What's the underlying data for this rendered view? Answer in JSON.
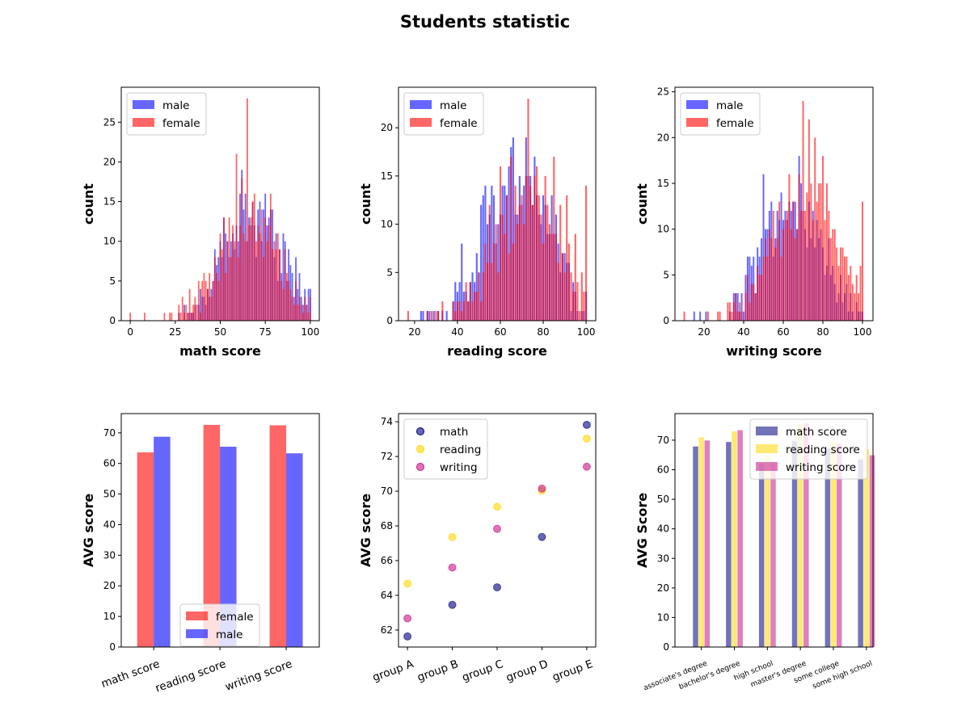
{
  "title": "Students statistic",
  "colors": {
    "male": "#0000ff",
    "female": "#ff0000",
    "math": "#000080",
    "reading": "#ffd700",
    "writing": "#c71585"
  },
  "chart_data": [
    {
      "type": "bar",
      "subtype": "histogram-overlay",
      "xlabel": "math score",
      "ylabel": "count",
      "xlim": [
        -5,
        105
      ],
      "ylim": [
        0,
        29.4
      ],
      "xticks": [
        0,
        25,
        50,
        75,
        100
      ],
      "yticks": [
        0,
        5,
        10,
        15,
        20,
        25
      ],
      "legend": "top-left",
      "series": [
        {
          "name": "male",
          "start": 27,
          "counts": [
            1,
            0,
            0,
            2,
            0,
            1,
            1,
            1,
            1,
            2,
            0,
            2,
            4,
            3,
            3,
            2,
            4,
            3,
            4,
            5,
            9,
            7,
            8,
            10,
            8,
            13,
            11,
            10,
            8,
            10,
            11,
            9,
            12,
            10,
            16,
            19,
            14,
            16,
            10,
            13,
            12,
            15,
            12,
            8,
            14,
            15,
            10,
            14,
            16,
            12,
            13,
            14,
            14,
            8,
            11,
            5,
            9,
            6,
            11,
            10,
            5,
            9,
            7,
            6,
            3,
            8,
            4,
            6,
            3,
            2,
            4,
            2,
            4,
            4
          ]
        },
        {
          "name": "female",
          "start": 0,
          "counts": [
            1,
            0,
            0,
            0,
            0,
            0,
            0,
            0,
            1,
            0,
            0,
            0,
            0,
            0,
            0,
            0,
            0,
            0,
            0,
            1,
            0,
            0,
            1,
            1,
            0,
            0,
            0,
            2,
            1,
            3,
            1,
            2,
            1,
            4,
            1,
            2,
            3,
            2,
            5,
            1,
            5,
            6,
            5,
            4,
            6,
            3,
            5,
            8,
            6,
            5,
            11,
            9,
            13,
            6,
            10,
            13,
            8,
            12,
            10,
            21,
            8,
            12,
            18,
            11,
            10,
            28,
            12,
            13,
            15,
            16,
            10,
            12,
            11,
            14,
            8,
            13,
            10,
            12,
            16,
            9,
            10,
            9,
            11,
            9,
            5,
            4,
            9,
            6,
            5,
            4,
            3,
            2,
            5,
            2,
            3,
            2,
            1,
            3,
            2,
            1,
            3
          ]
        }
      ]
    },
    {
      "type": "bar",
      "subtype": "histogram-overlay",
      "xlabel": "reading score",
      "ylabel": "count",
      "xlim": [
        12.5,
        104.5
      ],
      "ylim": [
        0,
        24.2
      ],
      "xticks": [
        20,
        40,
        60,
        80,
        100
      ],
      "yticks": [
        0,
        5,
        10,
        15,
        20
      ],
      "legend": "top-left",
      "series": [
        {
          "name": "male",
          "start": 23,
          "counts": [
            1,
            1,
            0,
            1,
            1,
            0,
            1,
            0,
            1,
            0,
            1,
            0,
            1,
            0,
            0,
            2,
            4,
            3,
            4,
            8,
            3,
            3,
            2,
            4,
            5,
            4,
            7,
            5,
            12,
            13,
            14,
            10,
            11,
            14,
            13,
            8,
            10,
            11,
            14,
            14,
            13,
            16,
            18,
            19,
            11,
            11,
            15,
            12,
            14,
            19,
            15,
            15,
            12,
            17,
            13,
            11,
            10,
            13,
            12,
            9,
            9,
            13,
            9,
            11,
            8,
            5,
            7,
            7,
            6,
            6,
            1,
            4,
            3,
            1,
            0,
            1,
            1,
            3
          ]
        },
        {
          "name": "female",
          "start": 17,
          "counts": [
            1,
            0,
            0,
            0,
            0,
            0,
            0,
            0,
            0,
            1,
            0,
            1,
            0,
            1,
            1,
            0,
            2,
            0,
            0,
            0,
            0,
            2,
            1,
            2,
            2,
            1,
            2,
            4,
            2,
            4,
            2,
            3,
            3,
            5,
            2,
            5,
            8,
            6,
            12,
            6,
            8,
            10,
            5,
            16,
            11,
            9,
            13,
            7,
            17,
            8,
            14,
            10,
            12,
            13,
            10,
            15,
            23,
            14,
            12,
            15,
            16,
            13,
            11,
            8,
            15,
            12,
            10,
            9,
            17,
            9,
            6,
            12,
            7,
            5,
            13,
            8,
            5,
            3,
            9,
            4,
            1,
            5,
            3,
            14
          ]
        }
      ]
    },
    {
      "type": "bar",
      "subtype": "histogram-overlay",
      "xlabel": "writing score",
      "ylabel": "count",
      "xlim": [
        5.3,
        105.3
      ],
      "ylim": [
        0,
        25.5
      ],
      "xticks": [
        20,
        40,
        60,
        80,
        100
      ],
      "yticks": [
        0,
        5,
        10,
        15,
        20,
        25
      ],
      "legend": "top-left",
      "series": [
        {
          "name": "male",
          "start": 15,
          "counts": [
            1,
            0,
            0,
            1,
            0,
            0,
            1,
            0,
            0,
            0,
            0,
            0,
            0,
            0,
            0,
            0,
            0,
            0,
            1,
            0,
            3,
            3,
            3,
            1,
            3,
            1,
            5,
            7,
            7,
            6,
            7,
            3,
            8,
            7,
            9,
            16,
            10,
            10,
            12,
            13,
            7,
            9,
            12,
            11,
            14,
            11,
            12,
            11,
            13,
            12,
            13,
            13,
            10,
            18,
            15,
            12,
            10,
            8,
            13,
            9,
            12,
            8,
            11,
            9,
            10,
            8,
            5,
            6,
            9,
            5,
            6,
            4,
            2,
            3,
            5,
            2,
            3,
            4,
            1,
            3,
            1,
            0,
            2,
            1,
            1,
            1
          ]
        },
        {
          "name": "female",
          "start": 10,
          "counts": [
            1,
            0,
            0,
            0,
            0,
            0,
            0,
            0,
            0,
            0,
            0,
            0,
            1,
            0,
            0,
            0,
            0,
            1,
            1,
            0,
            0,
            0,
            2,
            2,
            1,
            2,
            3,
            1,
            2,
            1,
            0,
            3,
            5,
            2,
            4,
            4,
            3,
            6,
            5,
            5,
            7,
            9,
            7,
            10,
            9,
            12,
            8,
            9,
            13,
            7,
            10,
            11,
            12,
            16,
            10,
            13,
            9,
            10,
            16,
            12,
            24,
            12,
            14,
            22,
            15,
            11,
            20,
            13,
            15,
            15,
            18,
            11,
            15,
            12,
            9,
            10,
            10,
            8,
            6,
            8,
            8,
            7,
            7,
            5,
            6,
            4,
            3,
            5,
            3,
            6,
            13
          ]
        }
      ]
    },
    {
      "type": "bar",
      "ylabel": "AVG score",
      "xlabel": "",
      "categories": [
        "math score",
        "reading score",
        "writing score"
      ],
      "ylim": [
        0,
        76.3
      ],
      "yticks": [
        0,
        10,
        20,
        30,
        40,
        50,
        60,
        70
      ],
      "legend": "lower-center",
      "series": [
        {
          "name": "female",
          "values": [
            63.63,
            72.61,
            72.47
          ]
        },
        {
          "name": "male",
          "values": [
            68.73,
            65.47,
            63.31
          ]
        }
      ]
    },
    {
      "type": "scatter",
      "ylabel": "AVG score",
      "xlabel": "",
      "categories": [
        "group A",
        "group B",
        "group C",
        "group D",
        "group E"
      ],
      "ylim": [
        61.02,
        74.47
      ],
      "yticks": [
        62,
        64,
        66,
        68,
        70,
        72,
        74
      ],
      "legend": "top-left",
      "series": [
        {
          "name": "math",
          "values": [
            61.63,
            63.45,
            64.46,
            67.36,
            73.82
          ]
        },
        {
          "name": "reading",
          "values": [
            64.67,
            67.35,
            69.1,
            70.03,
            73.03
          ]
        },
        {
          "name": "writing",
          "values": [
            62.67,
            65.6,
            67.83,
            70.15,
            71.41
          ]
        }
      ]
    },
    {
      "type": "bar",
      "ylabel": "AVG Score",
      "xlabel": "",
      "categories": [
        "associate's degree",
        "bachelor's degree",
        "high school",
        "master's degree",
        "some college",
        "some high school"
      ],
      "ylim": [
        0,
        79
      ],
      "yticks": [
        0,
        10,
        20,
        30,
        40,
        50,
        60,
        70
      ],
      "legend": "top-right",
      "series": [
        {
          "name": "math score",
          "values": [
            67.88,
            69.39,
            62.14,
            69.75,
            67.13,
            63.5
          ]
        },
        {
          "name": "reading score",
          "values": [
            70.93,
            73.0,
            64.7,
            75.37,
            69.46,
            66.94
          ]
        },
        {
          "name": "writing score",
          "values": [
            69.9,
            73.38,
            62.45,
            75.68,
            68.84,
            64.89
          ]
        }
      ]
    }
  ]
}
